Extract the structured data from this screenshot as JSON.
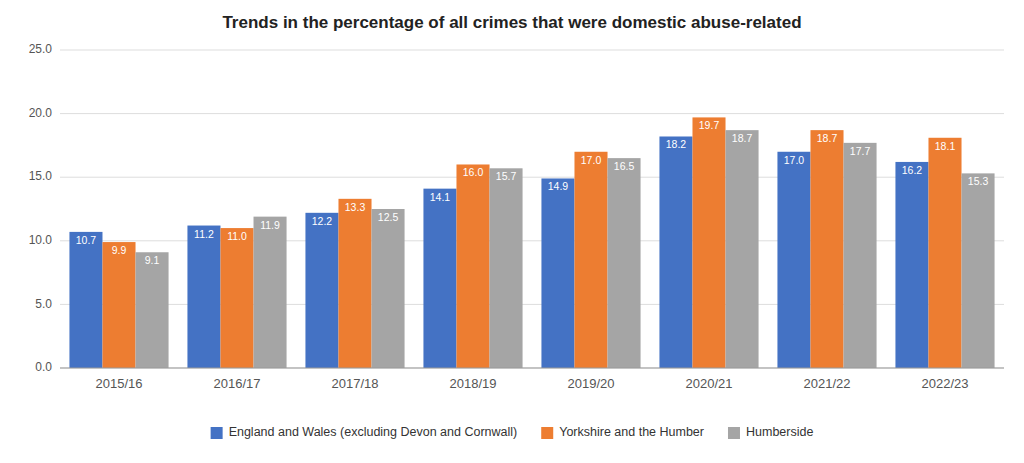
{
  "chart_data": {
    "type": "bar",
    "title": "Trends in the percentage of all crimes that were domestic abuse-related",
    "categories": [
      "2015/16",
      "2016/17",
      "2017/18",
      "2018/19",
      "2019/20",
      "2020/21",
      "2021/22",
      "2022/23"
    ],
    "series": [
      {
        "name": "England and Wales (excluding Devon and Cornwall)",
        "color": "#4472C4",
        "values": [
          10.7,
          11.2,
          12.2,
          14.1,
          14.9,
          18.2,
          17.0,
          16.2
        ],
        "value_labels": [
          "10.7",
          "11.2",
          "12.2",
          "14.1",
          "14.9",
          "18.2",
          "17.0",
          "16.2"
        ]
      },
      {
        "name": "Yorkshire and the Humber",
        "color": "#ED7D31",
        "values": [
          9.9,
          11.0,
          13.3,
          16.0,
          17.0,
          19.7,
          18.7,
          18.1
        ],
        "value_labels": [
          "9.9",
          "11.0",
          "13.3",
          "16.0",
          "17.0",
          "19.7",
          "18.7",
          "18.1"
        ]
      },
      {
        "name": "Humberside",
        "color": "#A5A5A5",
        "values": [
          9.1,
          11.9,
          12.5,
          15.7,
          16.5,
          18.7,
          17.7,
          15.3
        ],
        "value_labels": [
          "9.1",
          "11.9",
          "12.5",
          "15.7",
          "16.5",
          "18.7",
          "17.7",
          "15.3"
        ]
      }
    ],
    "ylim": [
      0,
      25
    ],
    "yticks": [
      {
        "value": 0,
        "label": "0.0"
      },
      {
        "value": 5,
        "label": "5.0"
      },
      {
        "value": 10,
        "label": "10.0"
      },
      {
        "value": 15,
        "label": "15.0"
      },
      {
        "value": 20,
        "label": "20.0"
      },
      {
        "value": 25,
        "label": "25.0"
      }
    ],
    "grid": true,
    "legend": "bottom",
    "data_labels": true
  }
}
